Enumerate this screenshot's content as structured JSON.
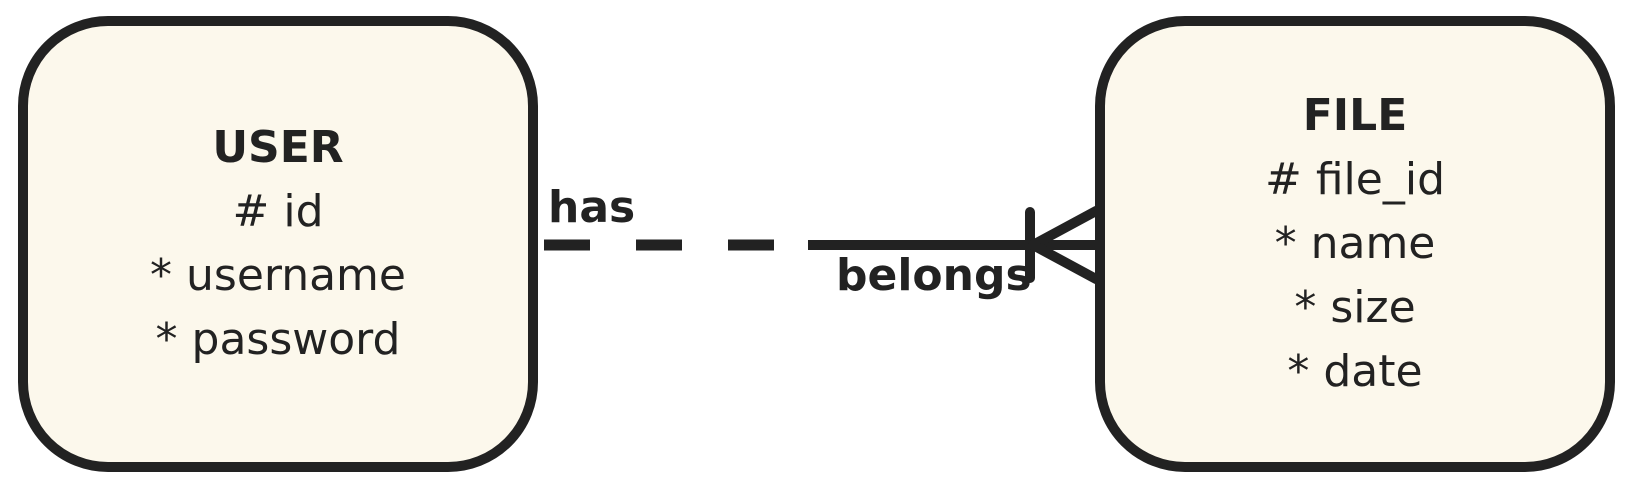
{
  "entities": {
    "user": {
      "title": "USER",
      "attributes": [
        "# id",
        "* username",
        "* password"
      ]
    },
    "file": {
      "title": "FILE",
      "attributes": [
        "# file_id",
        "* name",
        "* size",
        "* date"
      ]
    }
  },
  "relationship": {
    "from_label": "has",
    "to_label": "belongs",
    "from_line_style": "dashed",
    "to_line_style": "solid",
    "to_end": "one-or-many (crow's foot with bar)"
  },
  "colors": {
    "entity_fill": "#fcf8ec",
    "stroke": "#222222",
    "text": "#222222"
  }
}
